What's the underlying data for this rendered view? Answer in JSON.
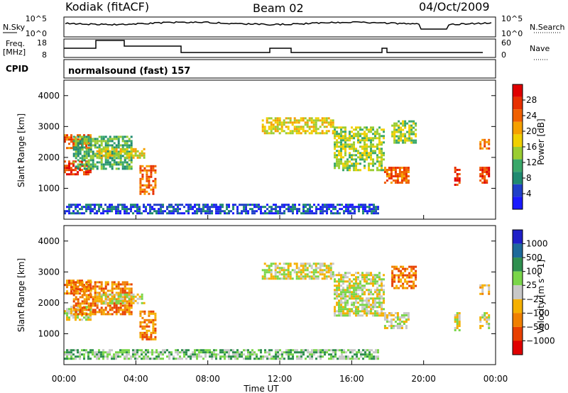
{
  "header": {
    "station": "Kodiak (fitACF)",
    "beam": "Beam 02",
    "date": "04/Oct/2009"
  },
  "left_labels": {
    "nsky": "N.Sky",
    "freq_line1": "Freq.",
    "freq_line2": "[MHz]",
    "cpid": "CPID"
  },
  "right_labels": {
    "nsearch": "N.Search",
    "nave": "Nave"
  },
  "noise_panel": {
    "left_ticks": [
      "10^5",
      "10^0"
    ],
    "right_ticks": [
      "10^5",
      "10^0"
    ]
  },
  "freq_panel": {
    "left_ticks": [
      "18",
      "8"
    ],
    "right_ticks": [
      "60",
      "0"
    ]
  },
  "cpid_text": "normalsound (fast) 157",
  "colors": {
    "power_scale": [
      "#1a1aff",
      "#2040c8",
      "#1f8a70",
      "#3aa86a",
      "#9acd32",
      "#f0d000",
      "#f5a000",
      "#f06000",
      "#e83000",
      "#e00000"
    ],
    "velocity_scale": [
      "#2020c8",
      "#1e6a9a",
      "#2f8f4f",
      "#7ad64a",
      "#c8c8c8",
      "#f5b000",
      "#f08000",
      "#e84000",
      "#e00000"
    ]
  },
  "chart_data": [
    {
      "type": "heatmap",
      "name": "power-panel",
      "xlabel": "",
      "ylabel": "Slant Range [km]",
      "xlim": [
        0,
        24
      ],
      "ylim": [
        0,
        4500
      ],
      "y_ticks": [
        1000,
        2000,
        3000,
        4000
      ],
      "colorbar_label": "Power [dB]",
      "colorbar_ticks": [
        "4",
        "8",
        "12",
        "16",
        "20",
        "24",
        "28"
      ],
      "regions": [
        {
          "t0": 0.0,
          "t1": 1.5,
          "r0": 2300,
          "r1": 2750,
          "level": 7
        },
        {
          "t0": 0.0,
          "t1": 1.5,
          "r0": 1450,
          "r1": 1900,
          "level": 8
        },
        {
          "t0": 0.5,
          "t1": 3.8,
          "r0": 1600,
          "r1": 2700,
          "level": 3
        },
        {
          "t0": 1.8,
          "t1": 4.5,
          "r0": 2000,
          "r1": 2300,
          "level": 5
        },
        {
          "t0": 4.2,
          "t1": 5.1,
          "r0": 800,
          "r1": 1750,
          "level": 7
        },
        {
          "t0": 11.0,
          "t1": 15.0,
          "r0": 2800,
          "r1": 3300,
          "level": 5
        },
        {
          "t0": 15.0,
          "t1": 17.8,
          "r0": 1600,
          "r1": 3000,
          "level": 4
        },
        {
          "t0": 17.8,
          "t1": 19.2,
          "r0": 1200,
          "r1": 1700,
          "level": 7
        },
        {
          "t0": 18.2,
          "t1": 19.6,
          "r0": 2500,
          "r1": 3200,
          "level": 4
        },
        {
          "t0": 21.7,
          "t1": 22.0,
          "r0": 1100,
          "r1": 1700,
          "level": 8
        },
        {
          "t0": 23.1,
          "t1": 23.6,
          "r0": 1200,
          "r1": 1700,
          "level": 8
        },
        {
          "t0": 23.1,
          "t1": 23.6,
          "r0": 2300,
          "r1": 2600,
          "level": 7
        },
        {
          "t0": 0.0,
          "t1": 17.5,
          "r0": 200,
          "r1": 500,
          "level": 1
        }
      ]
    },
    {
      "type": "heatmap",
      "name": "velocity-panel",
      "xlabel": "Time UT",
      "ylabel": "Slant Range [km]",
      "xlim": [
        0,
        24
      ],
      "ylim": [
        0,
        4500
      ],
      "y_ticks": [
        1000,
        2000,
        3000,
        4000
      ],
      "x_ticks": [
        "00:00",
        "04:00",
        "08:00",
        "12:00",
        "16:00",
        "20:00",
        "00:00"
      ],
      "colorbar_label": "Velocity [m s^-1]",
      "colorbar_ticks": [
        "1000",
        "500",
        "100",
        "25",
        "−25",
        "−100",
        "−500",
        "−1000"
      ],
      "regions": [
        {
          "t0": 0.0,
          "t1": 1.5,
          "r0": 2300,
          "r1": 2750,
          "level": 6
        },
        {
          "t0": 0.0,
          "t1": 1.5,
          "r0": 1450,
          "r1": 1900,
          "level": 4
        },
        {
          "t0": 0.5,
          "t1": 3.8,
          "r0": 1600,
          "r1": 2700,
          "level": 6
        },
        {
          "t0": 1.8,
          "t1": 4.5,
          "r0": 2000,
          "r1": 2300,
          "level": 4
        },
        {
          "t0": 4.2,
          "t1": 5.1,
          "r0": 800,
          "r1": 1750,
          "level": 6
        },
        {
          "t0": 11.0,
          "t1": 15.0,
          "r0": 2800,
          "r1": 3300,
          "level": 4
        },
        {
          "t0": 15.0,
          "t1": 17.8,
          "r0": 1600,
          "r1": 3000,
          "level": 4
        },
        {
          "t0": 17.8,
          "t1": 19.2,
          "r0": 1200,
          "r1": 1700,
          "level": 4
        },
        {
          "t0": 18.2,
          "t1": 19.6,
          "r0": 2500,
          "r1": 3200,
          "level": 6
        },
        {
          "t0": 21.7,
          "t1": 22.0,
          "r0": 1100,
          "r1": 1700,
          "level": 4
        },
        {
          "t0": 23.1,
          "t1": 23.6,
          "r0": 1200,
          "r1": 1700,
          "level": 4
        },
        {
          "t0": 23.1,
          "t1": 23.6,
          "r0": 2300,
          "r1": 2600,
          "level": 5
        },
        {
          "t0": 0.0,
          "t1": 17.5,
          "r0": 200,
          "r1": 500,
          "level": 3
        }
      ]
    }
  ]
}
